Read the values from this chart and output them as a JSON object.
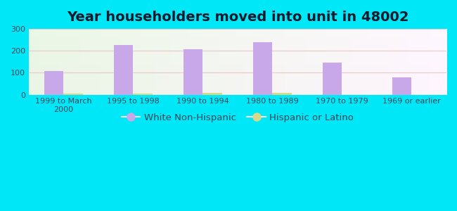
{
  "title": "Year householders moved into unit in 48002",
  "categories": [
    "1999 to March\n2000",
    "1995 to 1998",
    "1990 to 1994",
    "1980 to 1989",
    "1970 to 1979",
    "1969 or earlier"
  ],
  "white_values": [
    108,
    228,
    208,
    238,
    145,
    80
  ],
  "hispanic_values": [
    4,
    6,
    8,
    9,
    0,
    0
  ],
  "white_color": "#c8a8e8",
  "hispanic_color": "#d8d88a",
  "ylim": [
    0,
    300
  ],
  "yticks": [
    0,
    100,
    200,
    300
  ],
  "background_outer": "#00e8f8",
  "bar_width": 0.28,
  "title_fontsize": 14,
  "tick_fontsize": 8,
  "legend_fontsize": 9.5,
  "tick_color": "#334455",
  "label_color": "#334455",
  "grid_color": "#d0e8d0"
}
